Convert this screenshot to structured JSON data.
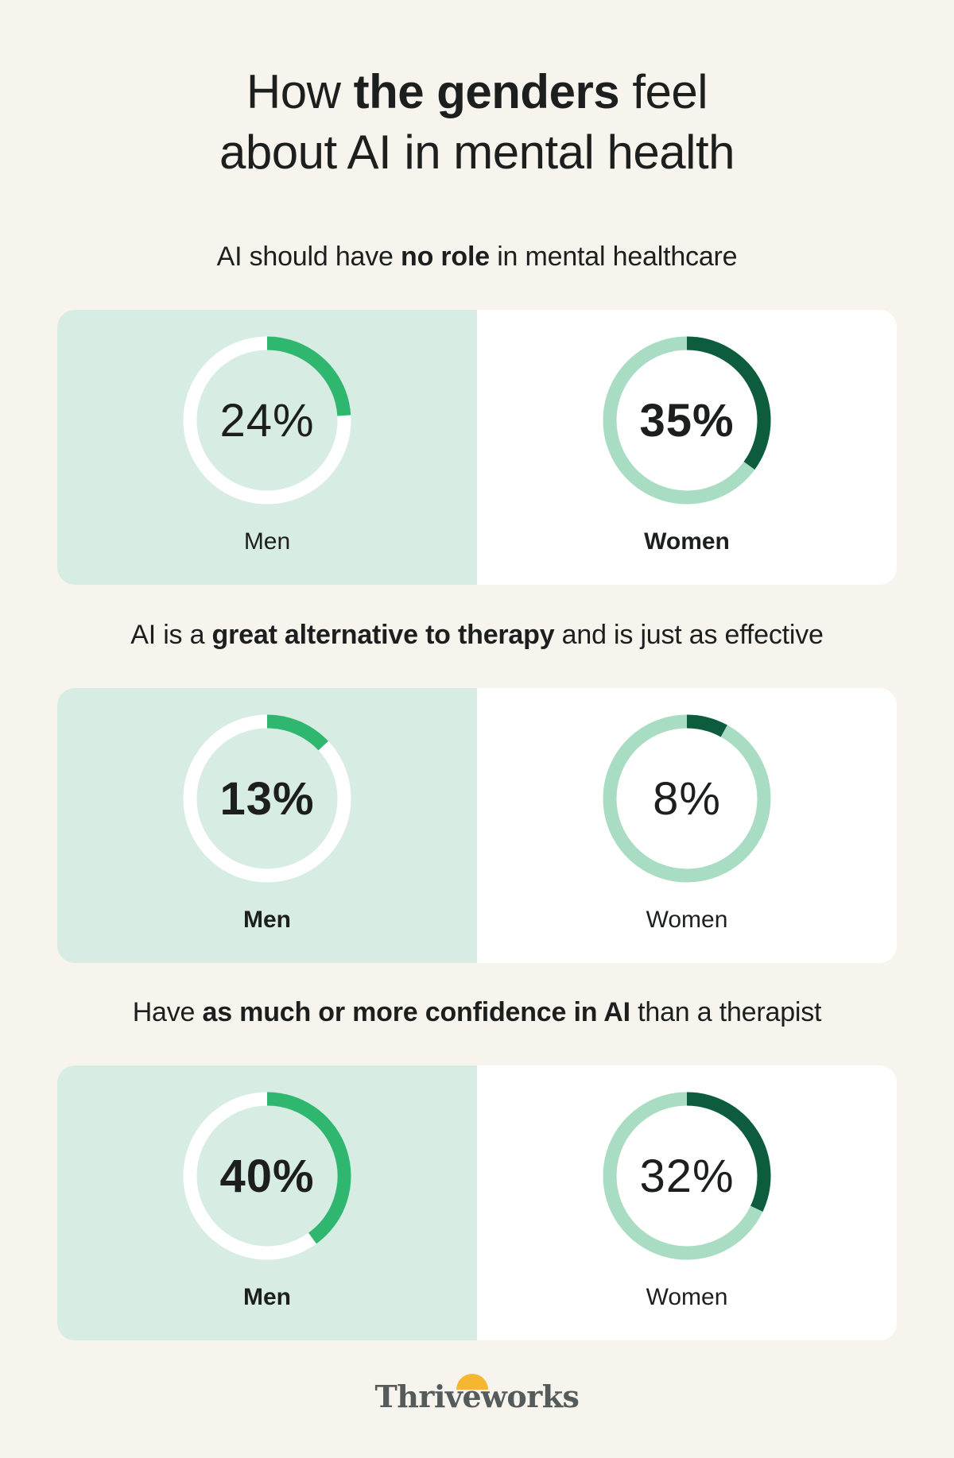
{
  "title": {
    "line1_pre": "How ",
    "line1_bold": "the genders",
    "line1_post": " feel",
    "line2": "about AI in mental health"
  },
  "colors": {
    "men_track": "#ffffff",
    "men_fill": "#2fb66f",
    "women_track": "#a8dcc3",
    "women_fill": "#0c5c3d"
  },
  "chart_data": [
    {
      "type": "pie",
      "title_pre": "AI should have ",
      "title_bold": "no role",
      "title_post": " in mental healthcare",
      "men": {
        "label": "Men",
        "value": 24,
        "display": "24%",
        "highlight": false
      },
      "women": {
        "label": "Women",
        "value": 35,
        "display": "35%",
        "highlight": true
      }
    },
    {
      "type": "pie",
      "title_pre": "AI is a ",
      "title_bold": "great alternative to therapy",
      "title_post": " and is just as effective",
      "men": {
        "label": "Men",
        "value": 13,
        "display": "13%",
        "highlight": true
      },
      "women": {
        "label": "Women",
        "value": 8,
        "display": "8%",
        "highlight": false
      }
    },
    {
      "type": "pie",
      "title_pre": "Have ",
      "title_bold": "as much or more confidence in AI",
      "title_post": " than a therapist",
      "men": {
        "label": "Men",
        "value": 40,
        "display": "40%",
        "highlight": true
      },
      "women": {
        "label": "Women",
        "value": 32,
        "display": "32%",
        "highlight": false
      }
    }
  ],
  "logo": {
    "text": "Thriveworks"
  }
}
